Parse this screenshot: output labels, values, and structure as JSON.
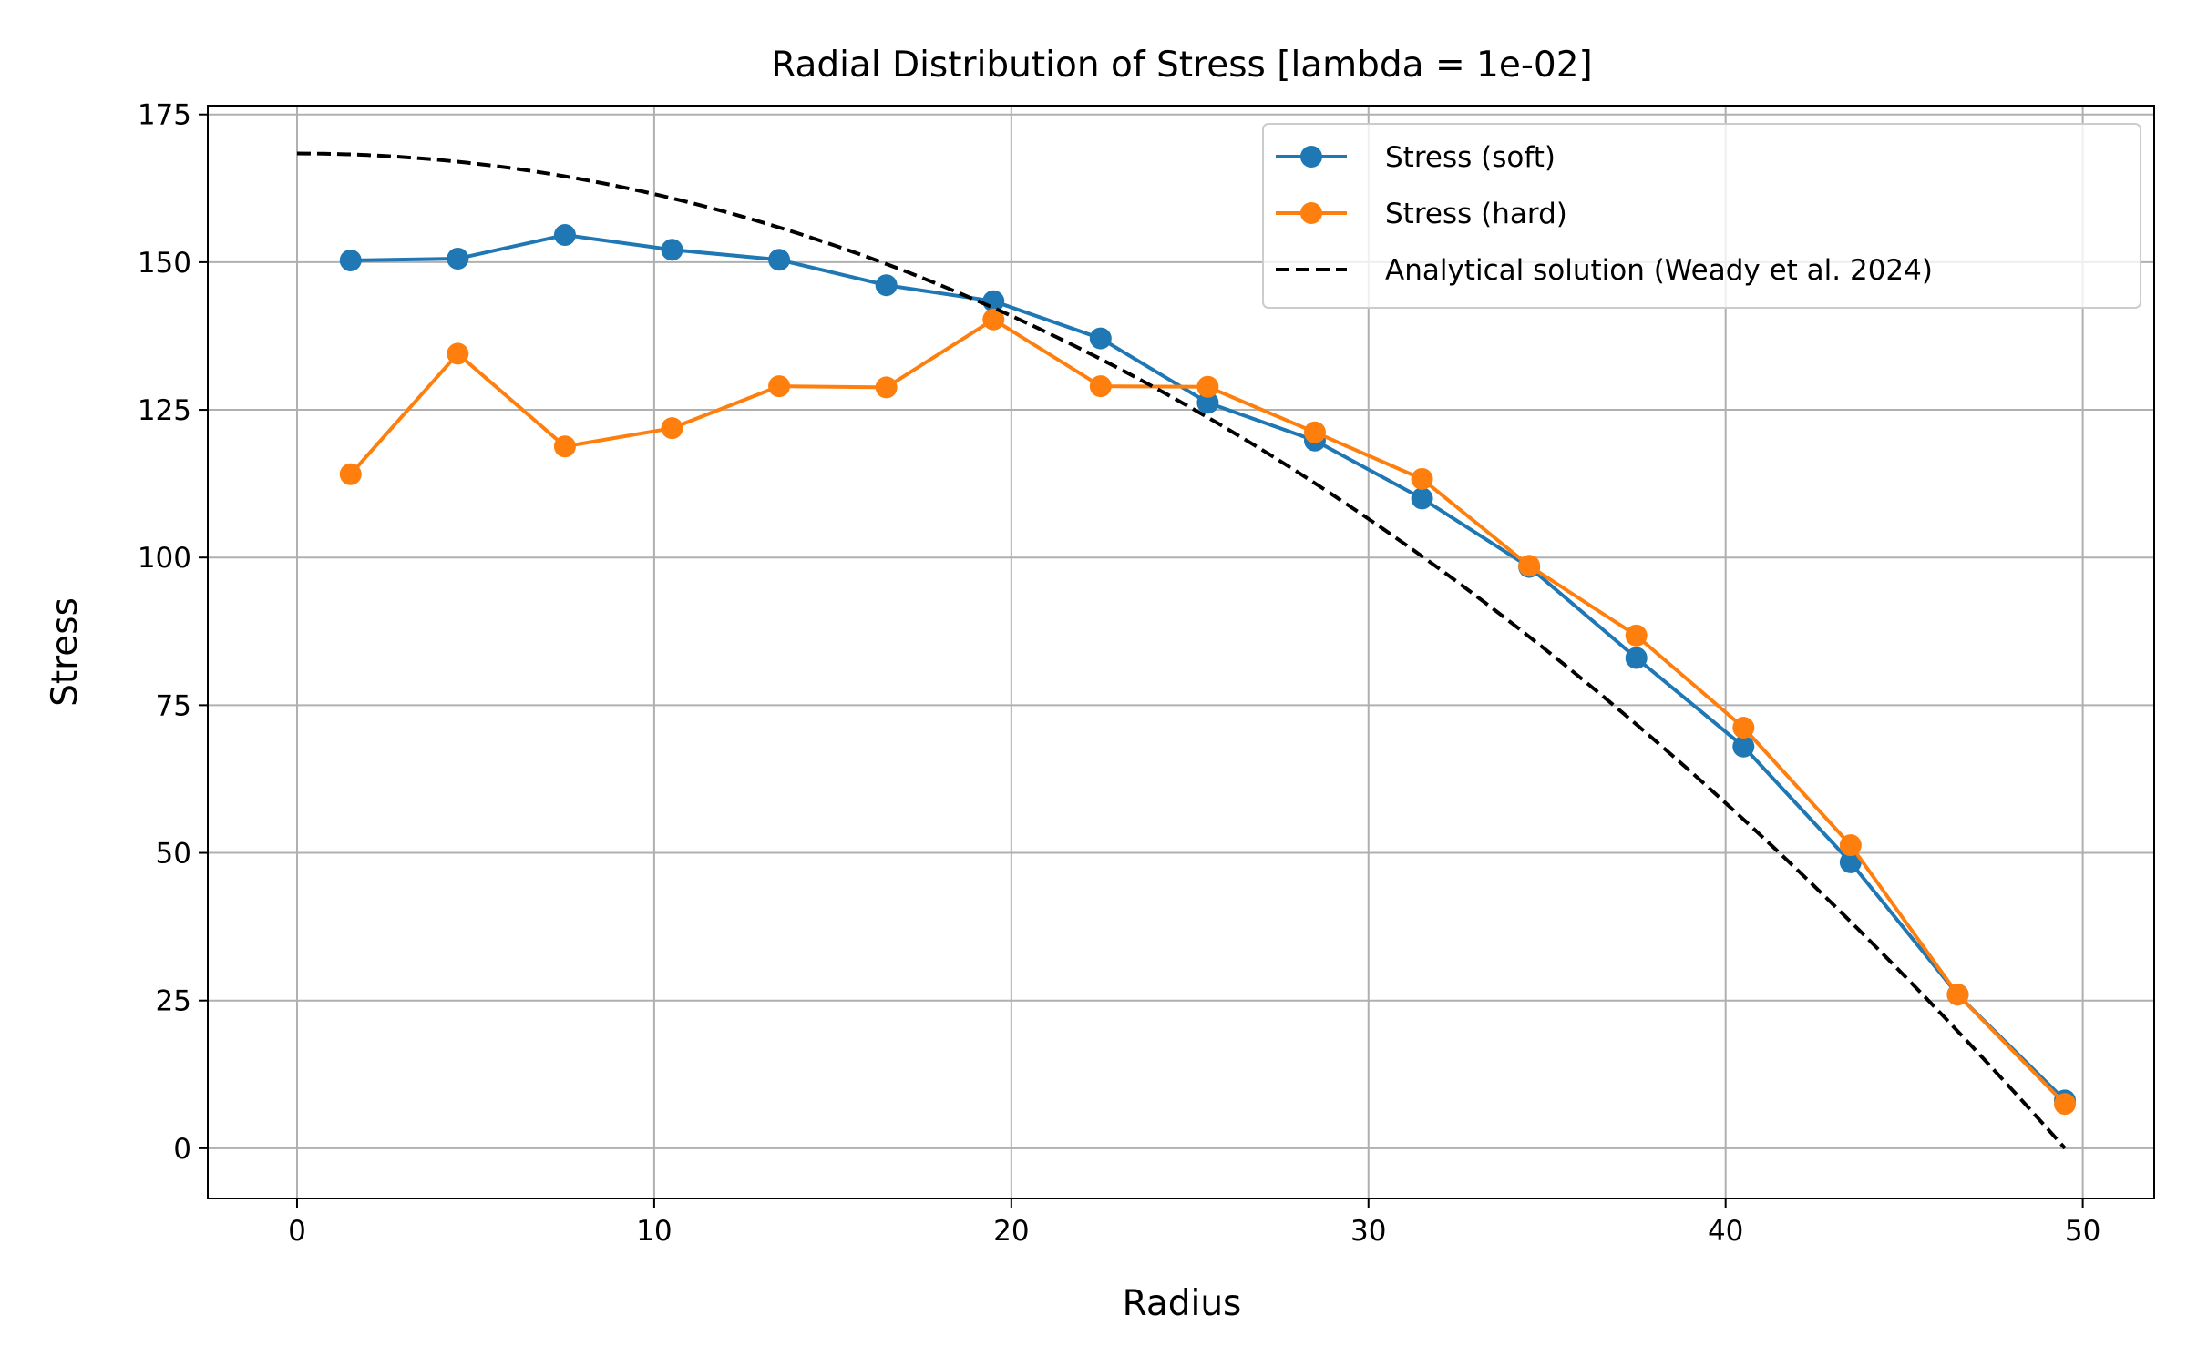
{
  "chart_data": {
    "type": "line",
    "title": "Radial Distribution of Stress [lambda = 1e-02]",
    "xlabel": "Radius",
    "ylabel": "Stress",
    "xlim": [
      -2.5,
      52
    ],
    "ylim": [
      -8.5,
      176.5
    ],
    "xticks": [
      0,
      10,
      20,
      30,
      40,
      50
    ],
    "yticks": [
      0,
      25,
      50,
      75,
      100,
      125,
      150,
      175
    ],
    "grid": true,
    "legend_position": "top-right",
    "series": [
      {
        "name": "Stress (soft)",
        "color": "#1f77b4",
        "style": "solid-marker",
        "x": [
          1.5,
          4.5,
          7.5,
          10.5,
          13.5,
          16.5,
          19.5,
          22.5,
          25.5,
          28.5,
          31.5,
          34.5,
          37.5,
          40.5,
          43.5,
          46.5,
          49.5
        ],
        "y": [
          150.3,
          150.6,
          154.6,
          152.1,
          150.4,
          146.1,
          143.4,
          137.1,
          126.2,
          119.8,
          110.0,
          98.4,
          83.0,
          68.0,
          48.4,
          26.0,
          8.1
        ]
      },
      {
        "name": "Stress (hard)",
        "color": "#ff7f0e",
        "style": "solid-marker",
        "x": [
          1.5,
          4.5,
          7.5,
          10.5,
          13.5,
          16.5,
          19.5,
          22.5,
          25.5,
          28.5,
          31.5,
          34.5,
          37.5,
          40.5,
          43.5,
          46.5,
          49.5
        ],
        "y": [
          114.1,
          134.5,
          118.8,
          121.9,
          129.0,
          128.8,
          140.3,
          129.0,
          128.9,
          121.2,
          113.3,
          98.6,
          86.8,
          71.2,
          51.3,
          26.0,
          7.5
        ]
      },
      {
        "name": "Analytical solution (Weady et al. 2024)",
        "color": "#000000",
        "style": "dashed",
        "formula": "168.4 * (1 - (r/49.5)^2)",
        "x_range": [
          0,
          49.5
        ]
      }
    ]
  }
}
